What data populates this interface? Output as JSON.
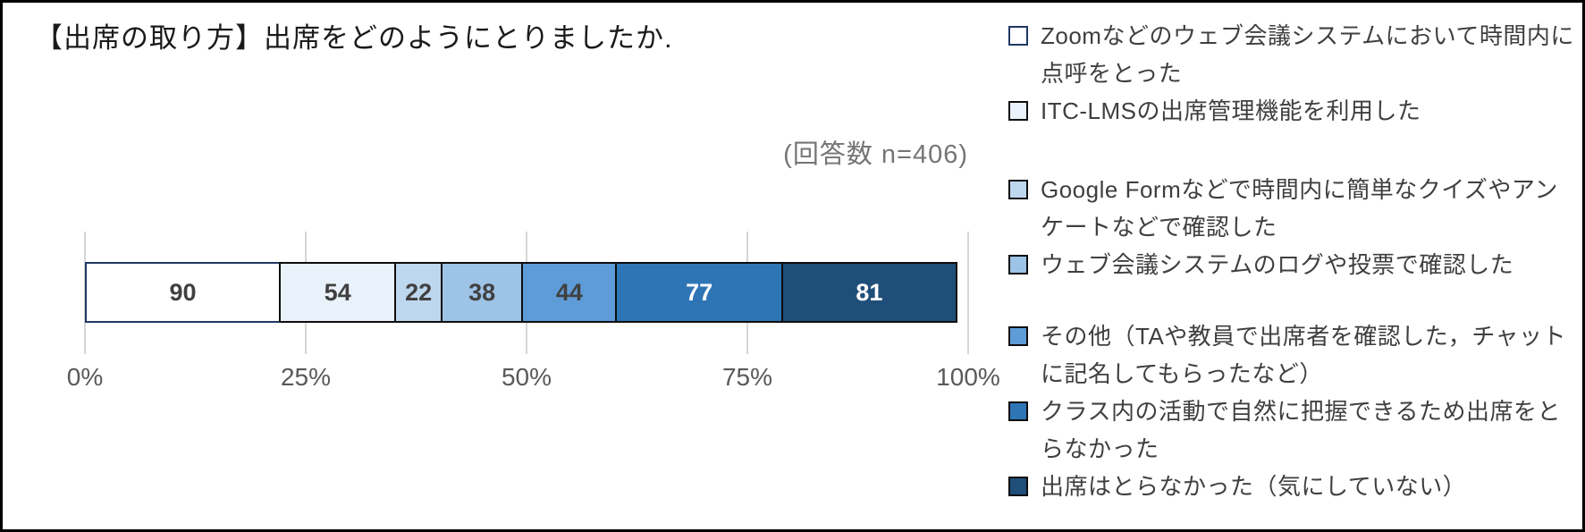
{
  "title": "【出席の取り方】出席をどのようにとりましたか.",
  "annotation": "(回答数 n=406)",
  "chart_data": {
    "type": "bar",
    "subtype": "horizontal-stacked-100pct",
    "title": "【出席の取り方】出席をどのようにとりましたか.",
    "note": "(回答数 n=406)",
    "total_n": 406,
    "x_ticks": [
      "0%",
      "25%",
      "50%",
      "75%",
      "100%"
    ],
    "xlim": [
      0,
      100
    ],
    "grid": true,
    "legend_position": "right",
    "series": [
      {
        "name": "Zoomなどのウェブ会議システムにおいて時間内に点呼をとった",
        "value": 90,
        "fill": "#FFFFFF",
        "border": "#1F3864",
        "label_color": "#404040"
      },
      {
        "name": "ITC-LMSの出席管理機能を利用した",
        "value": 54,
        "fill": "#E9F1FA",
        "border": "#0D0D0D",
        "label_color": "#404040"
      },
      {
        "name": "Google Formなどで時間内に簡単なクイズやアンケートなどで確認した",
        "value": 22,
        "fill": "#BDD7EE",
        "border": "#0D0D0D",
        "label_color": "#404040"
      },
      {
        "name": "ウェブ会議システムのログや投票で確認した",
        "value": 38,
        "fill": "#9DC3E6",
        "border": "#0D0D0D",
        "label_color": "#404040"
      },
      {
        "name": "その他（TAや教員で出席者を確認した，チャットに記名してもらったなど）",
        "value": 44,
        "fill": "#5E9CD8",
        "border": "#0D0D0D",
        "label_color": "#404040"
      },
      {
        "name": "クラス内の活動で自然に把握できるため出席をとらなかった",
        "value": 77,
        "fill": "#2E75B6",
        "border": "#0D0D0D",
        "label_color": "#FFFFFF"
      },
      {
        "name": "出席はとらなかった（気にしていない）",
        "value": 81,
        "fill": "#1F4E79",
        "border": "#0D0D0D",
        "label_color": "#FFFFFF"
      }
    ]
  }
}
